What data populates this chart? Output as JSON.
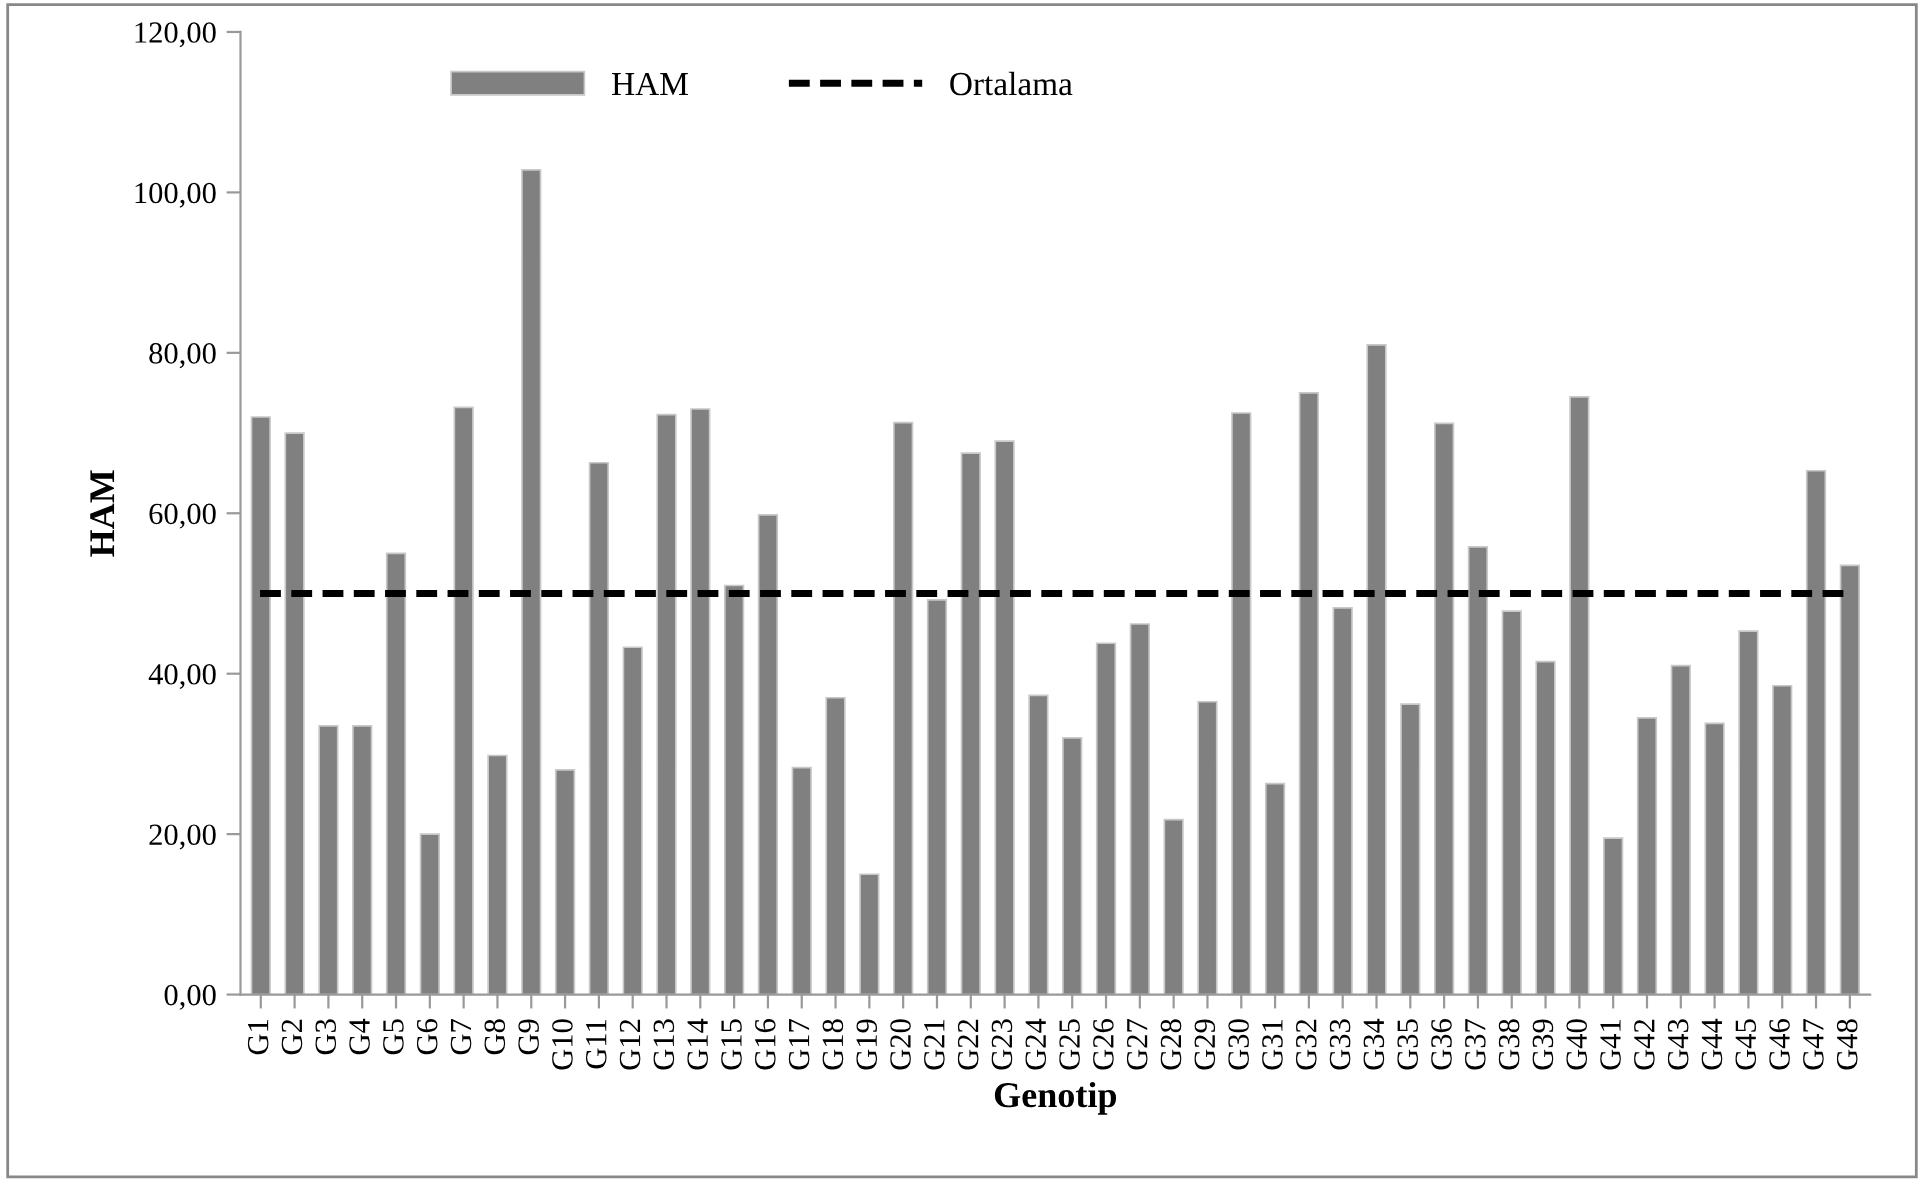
{
  "chart_data": {
    "type": "bar",
    "xlabel": "Genotip",
    "ylabel": "HAM",
    "categories": [
      "G1",
      "G2",
      "G3",
      "G4",
      "G5",
      "G6",
      "G7",
      "G8",
      "G9",
      "G10",
      "G11",
      "G12",
      "G13",
      "G14",
      "G15",
      "G16",
      "G17",
      "G18",
      "G19",
      "G20",
      "G21",
      "G22",
      "G23",
      "G24",
      "G25",
      "G26",
      "G27",
      "G28",
      "G29",
      "G30",
      "G31",
      "G32",
      "G33",
      "G34",
      "G35",
      "G36",
      "G37",
      "G38",
      "G39",
      "G40",
      "G41",
      "G42",
      "G43",
      "G44",
      "G45",
      "G46",
      "G47",
      "G48"
    ],
    "series": [
      {
        "name": "HAM",
        "color": "#808080",
        "values": [
          72,
          70,
          33.5,
          33.5,
          55,
          20,
          73.2,
          29.8,
          102.8,
          28,
          66.3,
          43.3,
          72.3,
          73,
          51,
          59.8,
          28.3,
          37,
          15,
          71.3,
          49.2,
          67.5,
          69,
          37.3,
          32,
          43.8,
          46.2,
          21.8,
          36.5,
          72.5,
          26.3,
          75,
          48.2,
          81,
          36.2,
          71.2,
          55.8,
          47.8,
          41.5,
          74.5,
          19.5,
          34.5,
          41,
          33.8,
          45.3,
          38.5,
          65.3,
          53.5
        ]
      }
    ],
    "ref_lines": [
      {
        "axis": "y",
        "value": 50,
        "label": "Ortalama",
        "color": "#000000",
        "line_style": "dashed"
      }
    ],
    "ylim": [
      0,
      120
    ],
    "yticks": [
      {
        "value": 0,
        "label": "0,00"
      },
      {
        "value": 20,
        "label": "20,00"
      },
      {
        "value": 40,
        "label": "40,00"
      },
      {
        "value": 60,
        "label": "60,00"
      },
      {
        "value": 80,
        "label": "80,00"
      },
      {
        "value": 100,
        "label": "100,00"
      },
      {
        "value": 120,
        "label": "120,00"
      }
    ],
    "grid": false,
    "legend": "top"
  }
}
